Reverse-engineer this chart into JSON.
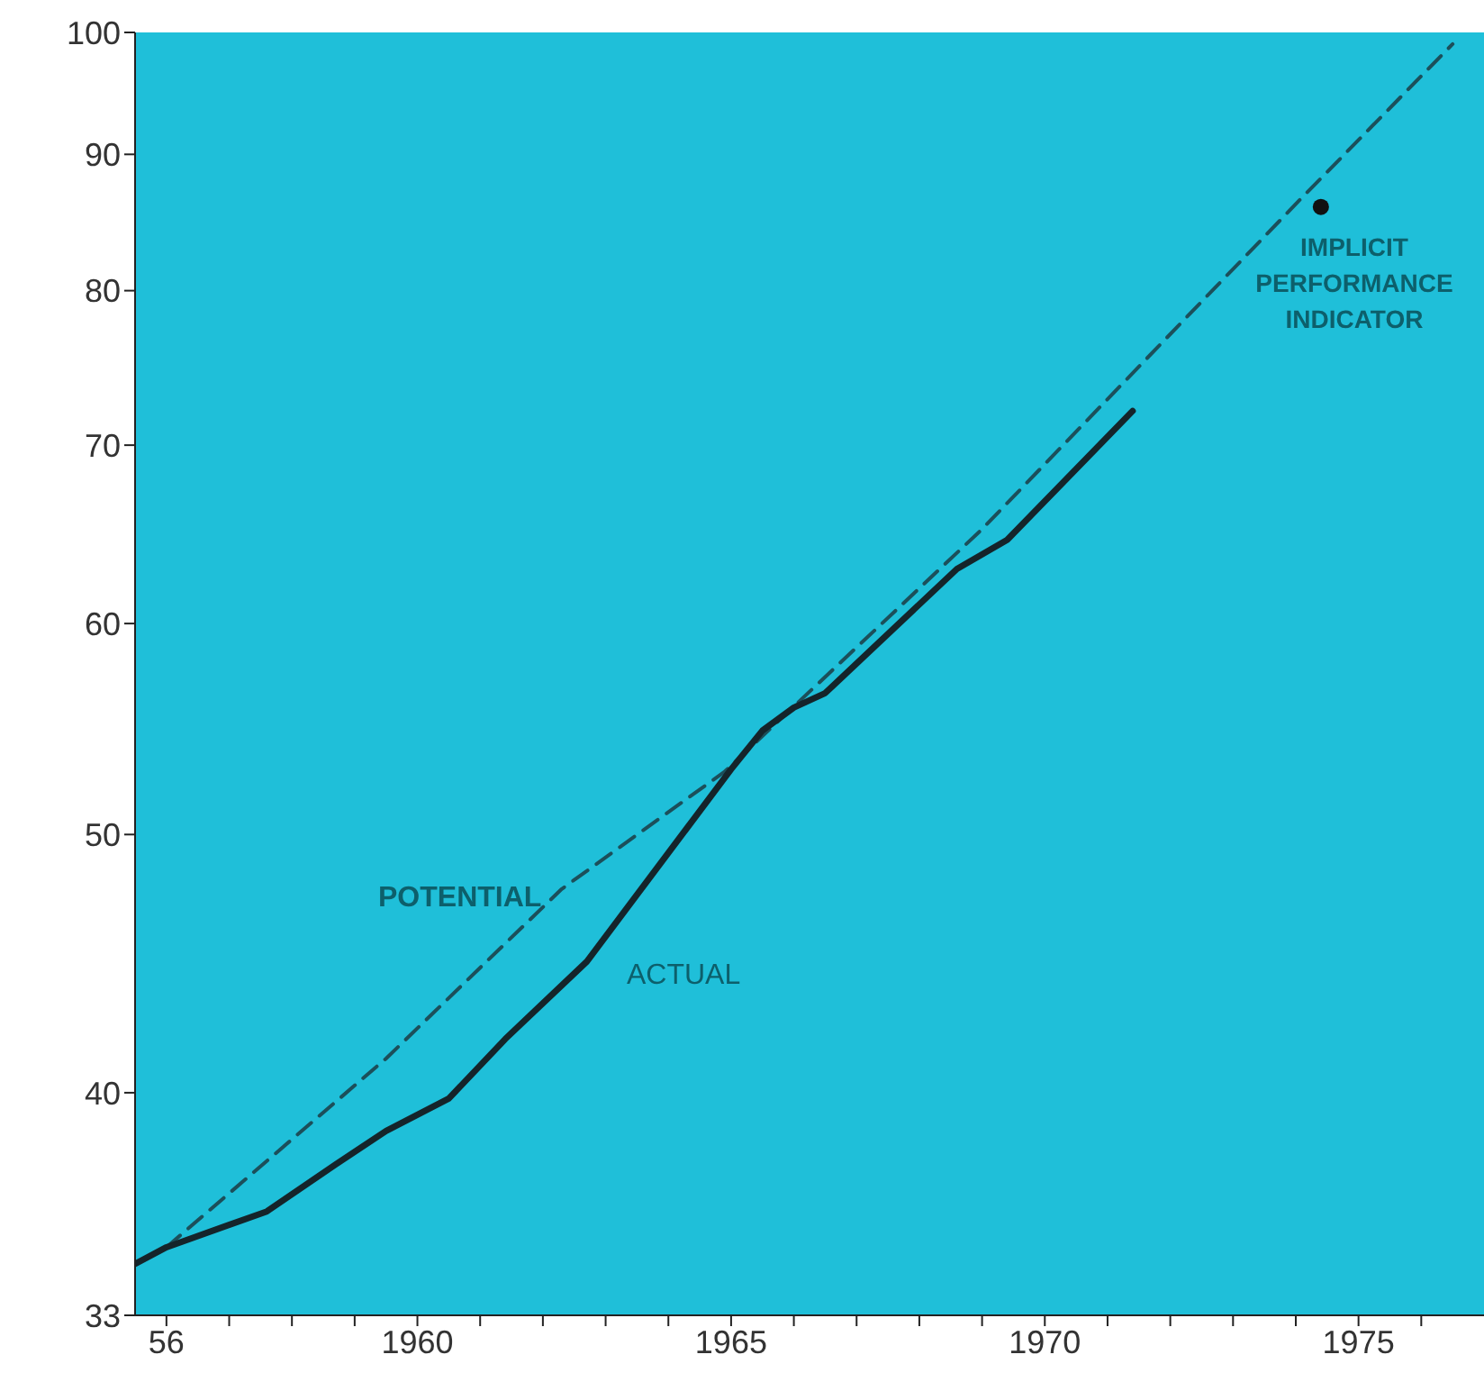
{
  "chart_data": {
    "type": "line",
    "log": "y",
    "xlim": [
      1955.5,
      1977
    ],
    "ylim": [
      33,
      100
    ],
    "yticks": [
      33,
      40,
      50,
      60,
      70,
      80,
      90,
      100
    ],
    "xticks": [
      {
        "value": 1956,
        "label": "56"
      },
      {
        "value": 1957,
        "label": null
      },
      {
        "value": 1958,
        "label": null
      },
      {
        "value": 1959,
        "label": null
      },
      1960,
      {
        "value": 1961,
        "label": null
      },
      {
        "value": 1962,
        "label": null
      },
      {
        "value": 1963,
        "label": null
      },
      {
        "value": 1964,
        "label": null
      },
      1965,
      {
        "value": 1966,
        "label": null
      },
      {
        "value": 1967,
        "label": null
      },
      {
        "value": 1968,
        "label": null
      },
      {
        "value": 1969,
        "label": null
      },
      1970,
      {
        "value": 1971,
        "label": null
      },
      {
        "value": 1972,
        "label": null
      },
      {
        "value": 1973,
        "label": null
      },
      {
        "value": 1974,
        "label": null
      },
      1975,
      {
        "value": 1976,
        "label": null
      }
    ],
    "series": [
      {
        "name": "POTENTIAL",
        "color": "#1c4f5a",
        "line_style": "dashed",
        "marker": "none",
        "x": [
          1956.0,
          1959.5,
          1962.3,
          1964.9,
          1969.0,
          1974.1,
          1976.5
        ],
        "values": [
          35.0,
          41.2,
          47.7,
          52.8,
          65.1,
          86.7,
          99
        ]
      },
      {
        "name": "ACTUAL",
        "color": "#15242a",
        "line_style": "solid",
        "marker": "none",
        "x": [
          1955.5,
          1956.0,
          1957.6,
          1958.7,
          1959.5,
          1960.5,
          1961.4,
          1962.7,
          1965.0,
          1965.5,
          1966.0,
          1966.5,
          1968.6,
          1969.4,
          1971.4
        ],
        "values": [
          34.5,
          35.0,
          36.1,
          37.6,
          38.7,
          39.8,
          41.9,
          44.8,
          52.9,
          54.7,
          55.8,
          56.5,
          62.9,
          64.5,
          72.1
        ]
      },
      {
        "name": "IMPLICIT PERFORMANCE INDICATOR",
        "type": "scatter",
        "color": "#111111",
        "marker": "circle",
        "x": [
          1974.4
        ],
        "values": [
          86.0
        ]
      }
    ]
  }
}
